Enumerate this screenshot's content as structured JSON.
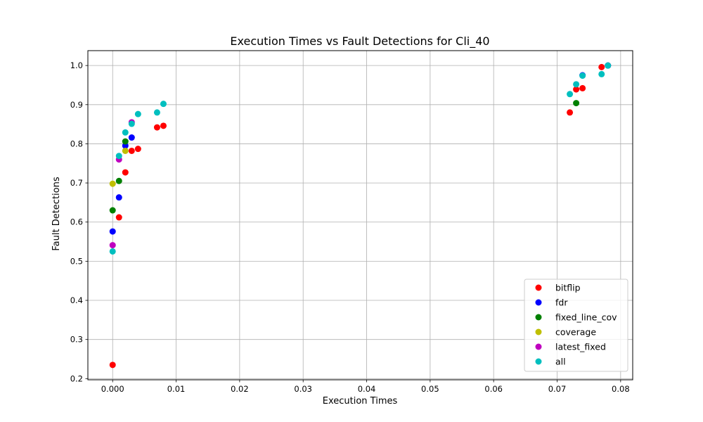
{
  "chart_data": {
    "type": "scatter",
    "title": "Execution Times vs Fault Detections for Cli_40",
    "xlabel": "Execution Times",
    "ylabel": "Fault Detections",
    "xlim": [
      -0.0039,
      0.0819
    ],
    "ylim": [
      0.197,
      1.038
    ],
    "xticks": [
      0.0,
      0.01,
      0.02,
      0.03,
      0.04,
      0.05,
      0.06,
      0.07,
      0.08
    ],
    "xtick_labels": [
      "0.000",
      "0.01",
      "0.02",
      "0.03",
      "0.04",
      "0.05",
      "0.06",
      "0.07",
      "0.08"
    ],
    "yticks": [
      0.2,
      0.3,
      0.4,
      0.5,
      0.6,
      0.7,
      0.8,
      0.9,
      1.0
    ],
    "ytick_labels": [
      "0.2",
      "0.3",
      "0.4",
      "0.5",
      "0.6",
      "0.7",
      "0.8",
      "0.9",
      "1.0"
    ],
    "grid": true,
    "legend_position": "lower-right",
    "series": [
      {
        "name": "bitflip",
        "color": "#ff0000",
        "points": [
          [
            0.0,
            0.235
          ],
          [
            0.001,
            0.612
          ],
          [
            0.002,
            0.727
          ],
          [
            0.003,
            0.782
          ],
          [
            0.004,
            0.787
          ],
          [
            0.007,
            0.842
          ],
          [
            0.008,
            0.846
          ],
          [
            0.072,
            0.88
          ],
          [
            0.073,
            0.939
          ],
          [
            0.074,
            0.942
          ],
          [
            0.077,
            0.996
          ],
          [
            0.078,
            1.0
          ]
        ]
      },
      {
        "name": "fdr",
        "color": "#0000ff",
        "points": [
          [
            0.0,
            0.576
          ],
          [
            0.001,
            0.663
          ],
          [
            0.002,
            0.795
          ],
          [
            0.003,
            0.816
          ],
          [
            0.074,
            0.975
          ],
          [
            0.078,
            1.0
          ]
        ]
      },
      {
        "name": "fixed_line_cov",
        "color": "#008000",
        "points": [
          [
            0.0,
            0.63
          ],
          [
            0.001,
            0.705
          ],
          [
            0.002,
            0.806
          ],
          [
            0.073,
            0.904
          ]
        ]
      },
      {
        "name": "coverage",
        "color": "#bfbf00",
        "points": [
          [
            0.0,
            0.698
          ],
          [
            0.002,
            0.782
          ]
        ]
      },
      {
        "name": "latest_fixed",
        "color": "#bf00bf",
        "points": [
          [
            0.0,
            0.541
          ],
          [
            0.001,
            0.76
          ],
          [
            0.003,
            0.855
          ]
        ]
      },
      {
        "name": "all",
        "color": "#00bfbf",
        "points": [
          [
            0.0,
            0.525
          ],
          [
            0.001,
            0.769
          ],
          [
            0.002,
            0.829
          ],
          [
            0.003,
            0.851
          ],
          [
            0.004,
            0.876
          ],
          [
            0.007,
            0.88
          ],
          [
            0.008,
            0.902
          ],
          [
            0.072,
            0.927
          ],
          [
            0.073,
            0.952
          ],
          [
            0.074,
            0.974
          ],
          [
            0.077,
            0.978
          ],
          [
            0.078,
            1.0
          ]
        ]
      }
    ]
  }
}
